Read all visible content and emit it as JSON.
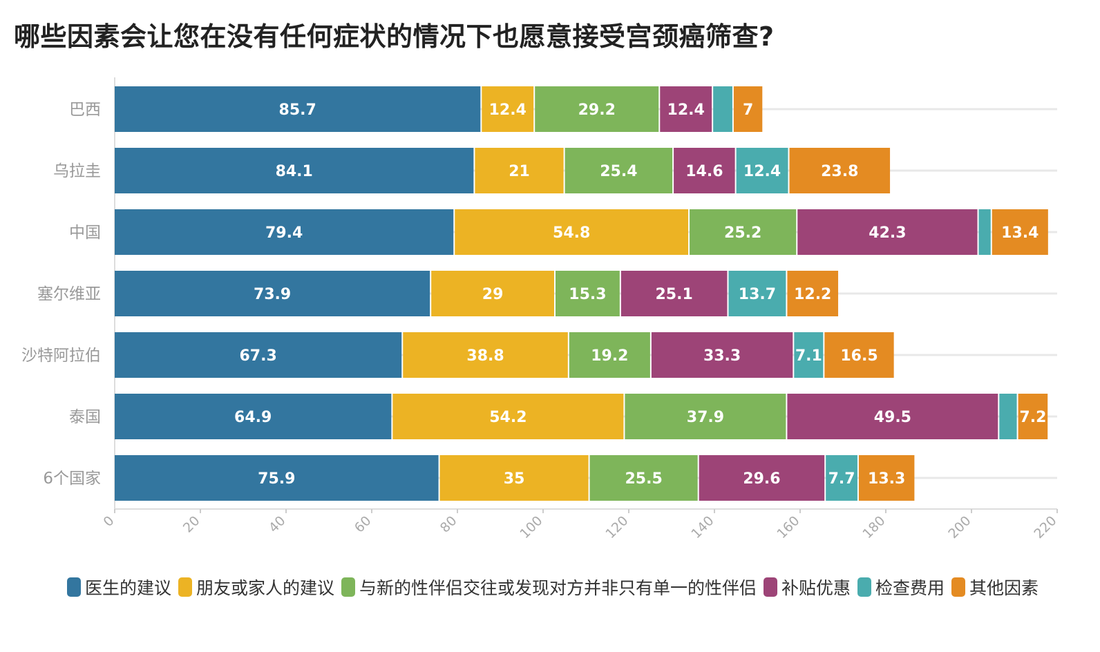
{
  "page": {
    "title": "哪些因素会让您在没有任何症状的情况下也愿意接受宫颈癌筛查?"
  },
  "chart_data": {
    "type": "bar",
    "orientation": "horizontal",
    "stacked": true,
    "title": "哪些因素会让您在没有任何症状的情况下也愿意接受宫颈癌筛查?",
    "xlabel": "",
    "ylabel": "",
    "xlim": [
      0,
      220
    ],
    "x_ticks": [
      0,
      20,
      40,
      60,
      80,
      100,
      120,
      140,
      160,
      180,
      200,
      220
    ],
    "grid": true,
    "legend_position": "bottom",
    "categories": [
      "巴西",
      "乌拉圭",
      "中国",
      "塞尔维亚",
      "沙特阿拉伯",
      "泰国",
      "6个国家"
    ],
    "series": [
      {
        "name": "医生的建议",
        "color": "#33769f",
        "values": [
          85.7,
          84.1,
          79.4,
          73.9,
          67.3,
          64.9,
          75.9
        ]
      },
      {
        "name": "朋友或家人的建议",
        "color": "#ecb324",
        "values": [
          12.4,
          21,
          54.8,
          29,
          38.8,
          54.2,
          35
        ]
      },
      {
        "name": "与新的性伴侣交往或发现对方并非只有单一的性伴侣",
        "color": "#7eb55a",
        "values": [
          29.2,
          25.4,
          25.2,
          15.3,
          19.2,
          37.9,
          25.5
        ]
      },
      {
        "name": "补贴优惠",
        "color": "#9d4477",
        "values": [
          12.4,
          14.6,
          42.3,
          25.1,
          33.3,
          49.5,
          29.6
        ]
      },
      {
        "name": "检查费用",
        "color": "#4aacae",
        "values": [
          4.8,
          12.4,
          3.1,
          13.7,
          7.1,
          4.4,
          7.7
        ]
      },
      {
        "name": "其他因素",
        "color": "#e48b22",
        "values": [
          7,
          23.8,
          13.4,
          12.2,
          16.5,
          7.2,
          13.3
        ]
      }
    ],
    "data_labels": [
      [
        "85.7",
        "12.4",
        "29.2",
        "12.4",
        "",
        "7"
      ],
      [
        "84.1",
        "21",
        "25.4",
        "14.6",
        "12.4",
        "23.8"
      ],
      [
        "79.4",
        "54.8",
        "25.2",
        "42.3",
        "",
        "13.4"
      ],
      [
        "73.9",
        "29",
        "15.3",
        "25.1",
        "13.7",
        "12.2"
      ],
      [
        "67.3",
        "38.8",
        "19.2",
        "33.3",
        "7.1",
        "16.5"
      ],
      [
        "64.9",
        "54.2",
        "37.9",
        "49.5",
        "",
        "7.2"
      ],
      [
        "75.9",
        "35",
        "25.5",
        "29.6",
        "7.7",
        "13.3"
      ]
    ]
  }
}
